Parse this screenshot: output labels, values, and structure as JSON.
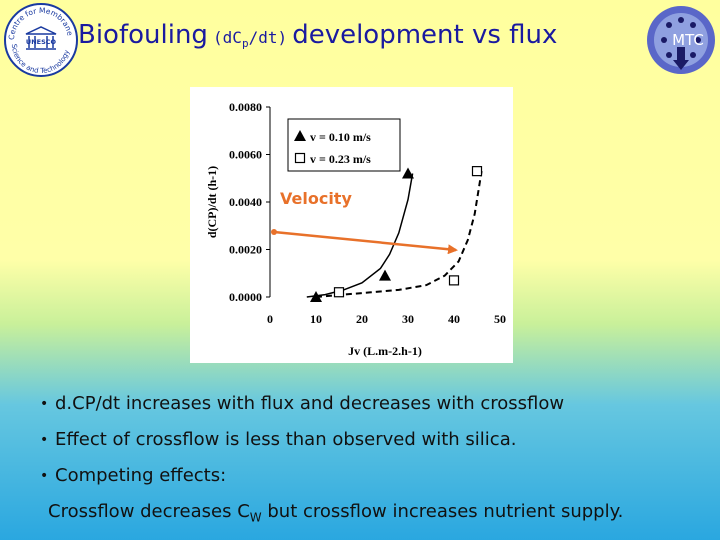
{
  "slide": {
    "title": {
      "part1": "Biofouling",
      "part2_prefix": "(dC",
      "part2_sub": "p",
      "part2_suffix": "/dt)",
      "part3": "development vs flux"
    },
    "logo_left": {
      "text_top": "Centre for Membrane",
      "text_bottom": "Science and Technology",
      "center": "UNESCO"
    },
    "logo_right": {
      "text": "MTC"
    }
  },
  "chart_data": {
    "type": "scatter",
    "xlabel": "Jv (L.m-2.h-1)",
    "ylabel": "d(CP)/dt (h-1)",
    "xlim": [
      0,
      50
    ],
    "ylim": [
      0,
      0.008
    ],
    "xticks": [
      "0",
      "10",
      "20",
      "30",
      "40",
      "50"
    ],
    "yticks": [
      "0.0000",
      "0.0020",
      "0.0040",
      "0.0060",
      "0.0080"
    ],
    "grid": false,
    "legend": {
      "placement": "top-left",
      "entries": [
        "v = 0.10 m/s",
        "v = 0.23 m/s"
      ]
    },
    "series": [
      {
        "name": "v = 0.10 m/s",
        "marker": "triangle-filled",
        "line": "solid",
        "x": [
          10,
          25,
          30
        ],
        "y": [
          0.0,
          0.0009,
          0.0052
        ],
        "fit_x": [
          8,
          12,
          16,
          20,
          24,
          26,
          28,
          30,
          31
        ],
        "fit_y": [
          0.0,
          0.0001,
          0.0003,
          0.0006,
          0.0012,
          0.0018,
          0.0027,
          0.0041,
          0.0052
        ]
      },
      {
        "name": "v = 0.23 m/s",
        "marker": "square-open",
        "line": "dashed",
        "x": [
          15,
          40,
          45
        ],
        "y": [
          0.0002,
          0.0007,
          0.0053
        ],
        "fit_x": [
          10,
          16,
          22,
          28,
          34,
          38,
          41,
          43,
          44.5,
          46
        ],
        "fit_y": [
          0.0,
          0.0001,
          0.0002,
          0.0003,
          0.0005,
          0.0009,
          0.0015,
          0.0024,
          0.0035,
          0.0053
        ]
      }
    ],
    "annotation": {
      "text": "Velocity",
      "color": "#e8712a"
    }
  },
  "bullets": [
    "d.CP/dt increases with flux and decreases with crossflow",
    "Effect of crossflow is less than observed with silica.",
    "Competing effects:"
  ],
  "note": {
    "part1": "Crossflow decreases C",
    "sub": "W",
    "part2": " but crossflow  increases nutrient supply."
  }
}
